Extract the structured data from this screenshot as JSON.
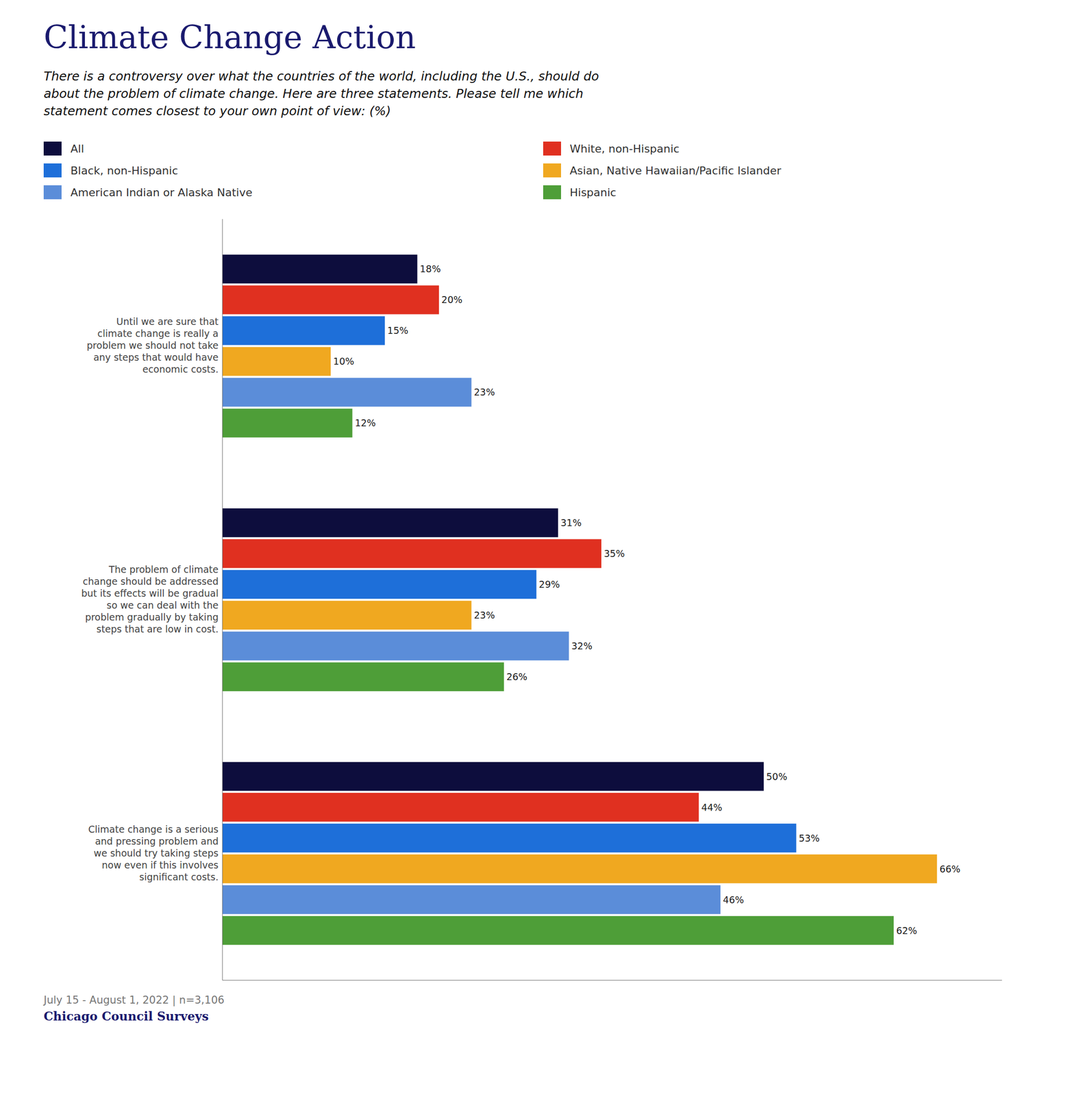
{
  "chart_data": {
    "type": "bar",
    "orientation": "horizontal",
    "title": "Climate Change Action",
    "subtitle": "There is a controversy over what the countries of the world, including the U.S., should do\nabout the problem of climate change. Here are three statements. Please tell me which\nstatement comes closest to your own point of view: (%)",
    "annotations": [
      "July 15 - August 1, 2022 | n=3,106",
      "Chicago Council Surveys"
    ],
    "categories": [
      "Until we are sure that\nclimate change is really a\nproblem we should not take\nany steps that would have\neconomic costs.",
      "The problem of climate\nchange should be addressed\nbut its effects will be gradual\nso we can deal with the\nproblem gradually by taking\nsteps that are low in cost.",
      "Climate change is a serious\nand pressing problem and\nwe should try taking steps\nnow even if this involves\nsignificant costs."
    ],
    "series": [
      {
        "name": "All",
        "color": "#0d0d3d",
        "values": [
          18,
          31,
          50
        ],
        "value_labels": [
          "18%",
          "31%",
          "50%"
        ]
      },
      {
        "name": "White, non-Hispanic",
        "color": "#e03020",
        "values": [
          20,
          35,
          44
        ],
        "value_labels": [
          "20%",
          "35%",
          "44%"
        ]
      },
      {
        "name": "Black, non-Hispanic",
        "color": "#1e6fd9",
        "values": [
          15,
          29,
          53
        ],
        "value_labels": [
          "15%",
          "29%",
          "53%"
        ]
      },
      {
        "name": "Asian, Native Hawaiian/Pacific Islander",
        "color": "#f0a820",
        "values": [
          10,
          23,
          66
        ],
        "value_labels": [
          "10%",
          "23%",
          "66%"
        ]
      },
      {
        "name": "American Indian or Alaska Native",
        "color": "#5b8dd9",
        "values": [
          23,
          32,
          46
        ],
        "value_labels": [
          "23%",
          "32%",
          "46%"
        ]
      },
      {
        "name": "Hispanic",
        "color": "#4e9e38",
        "values": [
          12,
          26,
          62
        ],
        "value_labels": [
          "12%",
          "26%",
          "62%"
        ]
      }
    ],
    "xlim": [
      0,
      72
    ],
    "grid": false,
    "legend": "top",
    "data_labels": true,
    "tick_labels": "y"
  }
}
